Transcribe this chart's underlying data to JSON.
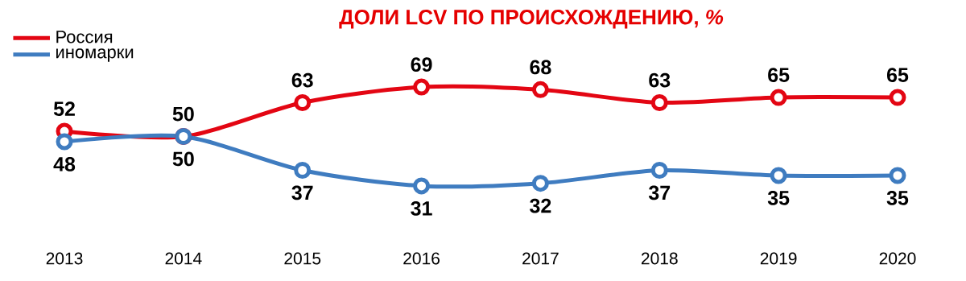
{
  "chart_data": {
    "type": "line",
    "title": "ДОЛИ LCV ПО ПРОИСХОЖДЕНИЮ, *%*",
    "categories": [
      "2013",
      "2014",
      "2015",
      "2016",
      "2017",
      "2018",
      "2019",
      "2020"
    ],
    "series": [
      {
        "name": "Россия",
        "color": "#e30613",
        "values": [
          52,
          50,
          63,
          69,
          68,
          63,
          65,
          65
        ]
      },
      {
        "name": "иномарки",
        "color": "#3f7cc0",
        "values": [
          48,
          50,
          37,
          31,
          32,
          37,
          35,
          35
        ]
      }
    ],
    "data_labels": true,
    "marker": "circle",
    "line_style": "solid",
    "legend": "top left",
    "grid": false,
    "tick_labels": "x"
  }
}
